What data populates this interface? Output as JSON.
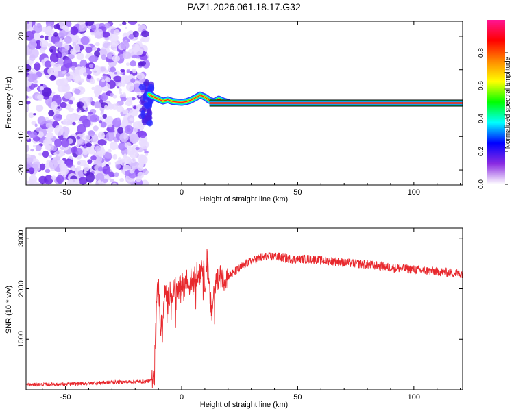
{
  "title": "PAZ1.2026.061.18.17.G32",
  "chart_data": [
    {
      "type": "heatmap",
      "title": "PAZ1.2026.061.18.17.G32",
      "xlabel": "Height of straight line (km)",
      "ylabel": "Frequency (Hz)",
      "xlim": [
        -67,
        121
      ],
      "ylim": [
        -24.5,
        24.5
      ],
      "xticks": [
        -50,
        0,
        50,
        100
      ],
      "yticks": [
        -20,
        -10,
        0,
        10,
        20
      ],
      "noise_region_km": [
        -67,
        -15
      ],
      "signal_line_frequency_hz": 0,
      "signal_line_start_km": 20,
      "wobble_track": {
        "x": [
          -14,
          -12,
          -10,
          -8,
          -6,
          -4,
          -2,
          0,
          2,
          4,
          6,
          8,
          10,
          12,
          14,
          16,
          18,
          20
        ],
        "y": [
          2.6,
          1.8,
          1.2,
          0.6,
          1.0,
          0.5,
          0.3,
          0.2,
          0.4,
          0.9,
          1.6,
          2.4,
          1.8,
          0.8,
          0.4,
          1.2,
          0.6,
          0.2
        ]
      },
      "colorbar": {
        "label": "Normalized spectral amplitude",
        "ticks": [
          0.0,
          0.2,
          0.4,
          0.6,
          0.8
        ],
        "range": [
          0,
          1
        ],
        "colors": [
          "#ffffff",
          "#8a2be2",
          "#0000ff",
          "#00ffff",
          "#00ff00",
          "#ffff00",
          "#ff8800",
          "#ff0000",
          "#ff1493"
        ]
      }
    },
    {
      "type": "line",
      "xlabel": "Height of straight line (km)",
      "ylabel": "SNR (10 * v/v)",
      "xlim": [
        -67,
        121
      ],
      "ylim": [
        0,
        3200
      ],
      "xticks": [
        -50,
        0,
        50,
        100
      ],
      "yticks": [
        1000,
        2000,
        3000
      ],
      "series": [
        {
          "name": "SNR",
          "color": "#e8282d",
          "x": [
            -67,
            -50,
            -40,
            -30,
            -20,
            -15,
            -13,
            -12,
            -11.5,
            -11,
            -10,
            -9,
            -8,
            -7,
            -6,
            -5,
            -4,
            -3,
            -2,
            -1,
            0,
            1,
            2,
            3,
            4,
            5,
            6,
            7,
            8,
            9,
            10,
            11,
            12,
            13,
            14,
            15,
            16,
            17,
            18,
            20,
            22,
            25,
            28,
            30,
            33,
            35,
            40,
            45,
            50,
            55,
            60,
            65,
            70,
            75,
            80,
            85,
            90,
            95,
            100,
            105,
            110,
            115,
            121
          ],
          "y": [
            100,
            110,
            130,
            150,
            160,
            170,
            180,
            400,
            900,
            1600,
            2100,
            1200,
            1500,
            2000,
            1700,
            2000,
            1800,
            2100,
            1900,
            2000,
            2100,
            2000,
            2200,
            2050,
            2200,
            2100,
            2300,
            2250,
            2350,
            2500,
            2100,
            2600,
            1900,
            1500,
            2000,
            2300,
            2100,
            2300,
            2200,
            2250,
            2300,
            2400,
            2500,
            2550,
            2600,
            2620,
            2640,
            2600,
            2580,
            2590,
            2560,
            2550,
            2520,
            2500,
            2480,
            2450,
            2420,
            2400,
            2380,
            2360,
            2340,
            2320,
            2300
          ]
        }
      ]
    }
  ]
}
